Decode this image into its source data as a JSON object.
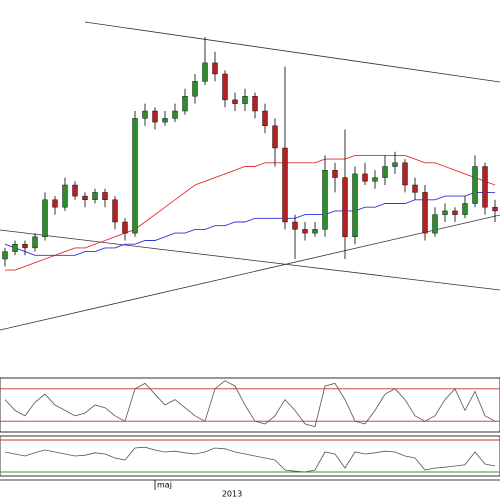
{
  "chart_data": {
    "type": "candlestick",
    "x_labels": [
      "maj",
      "2013"
    ],
    "ylim": [
      0,
      100
    ],
    "up_color": "#2e8b2e",
    "down_color": "#b22222",
    "ohlc": [
      [
        30,
        33,
        28,
        32
      ],
      [
        32,
        35,
        31,
        34
      ],
      [
        34,
        35,
        31,
        33
      ],
      [
        33,
        37,
        32,
        36
      ],
      [
        36,
        48,
        35,
        46
      ],
      [
        46,
        47,
        42,
        44
      ],
      [
        44,
        52,
        43,
        50
      ],
      [
        50,
        51,
        46,
        47
      ],
      [
        47,
        48,
        44,
        46
      ],
      [
        46,
        49,
        45,
        48
      ],
      [
        48,
        49,
        44,
        46
      ],
      [
        46,
        47,
        38,
        40
      ],
      [
        40,
        41,
        35,
        37
      ],
      [
        37,
        70,
        36,
        68
      ],
      [
        68,
        72,
        66,
        70
      ],
      [
        70,
        71,
        65,
        67
      ],
      [
        67,
        70,
        66,
        68
      ],
      [
        68,
        72,
        67,
        70
      ],
      [
        70,
        76,
        69,
        74
      ],
      [
        74,
        80,
        72,
        78
      ],
      [
        78,
        90,
        77,
        83
      ],
      [
        83,
        86,
        78,
        80
      ],
      [
        80,
        81,
        71,
        73
      ],
      [
        73,
        75,
        70,
        72
      ],
      [
        72,
        76,
        70,
        74
      ],
      [
        74,
        75,
        68,
        70
      ],
      [
        70,
        72,
        64,
        66
      ],
      [
        66,
        68,
        55,
        60
      ],
      [
        60,
        82,
        38,
        40
      ],
      [
        40,
        42,
        30,
        38
      ],
      [
        38,
        40,
        35,
        37
      ],
      [
        37,
        40,
        36,
        38
      ],
      [
        38,
        58,
        36,
        54
      ],
      [
        54,
        56,
        48,
        52
      ],
      [
        52,
        65,
        30,
        36
      ],
      [
        36,
        55,
        34,
        53
      ],
      [
        53,
        56,
        50,
        51
      ],
      [
        51,
        54,
        49,
        52
      ],
      [
        52,
        58,
        50,
        55
      ],
      [
        55,
        59,
        53,
        56
      ],
      [
        56,
        57,
        48,
        50
      ],
      [
        50,
        52,
        46,
        48
      ],
      [
        48,
        50,
        35,
        37
      ],
      [
        37,
        44,
        36,
        42
      ],
      [
        42,
        45,
        40,
        43
      ],
      [
        43,
        44,
        40,
        42
      ],
      [
        42,
        47,
        41,
        45
      ],
      [
        45,
        58,
        44,
        55
      ],
      [
        55,
        56,
        42,
        44
      ],
      [
        44,
        46,
        40,
        43
      ]
    ],
    "series": [
      {
        "color": "#e03030",
        "values": [
          27,
          27,
          28,
          29,
          30,
          31,
          32,
          33,
          33,
          34,
          35,
          36,
          37,
          38,
          40,
          42,
          44,
          46,
          48,
          50,
          51,
          52,
          53,
          54,
          55,
          55,
          56,
          56,
          56,
          56,
          56,
          56,
          57,
          57,
          57,
          58,
          58,
          58,
          58,
          58,
          58,
          57,
          56,
          56,
          55,
          54,
          53,
          52,
          51,
          50
        ]
      },
      {
        "color": "#3030e0",
        "values": [
          34,
          33,
          32,
          31,
          31,
          31,
          31,
          31,
          32,
          32,
          33,
          33,
          34,
          34,
          35,
          35,
          36,
          37,
          37,
          38,
          38,
          39,
          39,
          40,
          40,
          41,
          41,
          41,
          41,
          41,
          42,
          42,
          42,
          43,
          43,
          43,
          44,
          44,
          45,
          45,
          45,
          46,
          46,
          46,
          47,
          47,
          47,
          48,
          48,
          48
        ]
      }
    ],
    "oscillator": {
      "ylim": [
        0,
        100
      ],
      "levels": [
        80,
        20
      ],
      "color": "#555555",
      "values": [
        60,
        40,
        30,
        55,
        70,
        50,
        40,
        30,
        35,
        50,
        45,
        30,
        20,
        80,
        90,
        70,
        50,
        60,
        45,
        30,
        20,
        80,
        95,
        85,
        50,
        20,
        15,
        30,
        60,
        40,
        15,
        10,
        85,
        90,
        60,
        20,
        15,
        40,
        70,
        80,
        60,
        30,
        20,
        30,
        60,
        80,
        40,
        75,
        30,
        20
      ]
    },
    "momentum": {
      "ylim": [
        0,
        100
      ],
      "levels": [
        90,
        10
      ],
      "color": "#555555",
      "values": [
        60,
        55,
        50,
        58,
        65,
        60,
        55,
        50,
        52,
        58,
        55,
        45,
        40,
        70,
        72,
        65,
        60,
        62,
        58,
        55,
        60,
        70,
        68,
        60,
        55,
        50,
        45,
        40,
        15,
        12,
        10,
        15,
        60,
        55,
        20,
        60,
        55,
        58,
        62,
        60,
        50,
        45,
        15,
        20,
        22,
        25,
        28,
        60,
        30,
        25
      ]
    }
  }
}
